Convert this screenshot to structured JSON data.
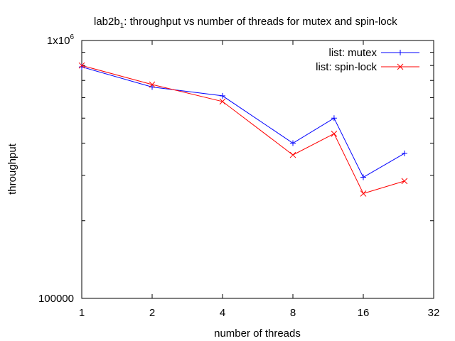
{
  "chart_data": {
    "type": "line",
    "title_main": "lab2b",
    "title_sub": "1",
    "title_rest": ": throughput vs number of threads for mutex and spin-lock",
    "xlabel": "number of threads",
    "ylabel": "throughput",
    "x_scale": "log2",
    "y_scale": "log10",
    "xlim": [
      1,
      32
    ],
    "ylim": [
      100000,
      1000000
    ],
    "x_ticks": [
      1,
      2,
      4,
      8,
      16,
      32
    ],
    "x_tick_labels": [
      "1",
      "2",
      "4",
      "8",
      "16",
      "32"
    ],
    "y_ticks": [
      100000,
      1000000
    ],
    "y_tick_labels": {
      "low": "100000",
      "high_base": "1x10",
      "high_exp": "6"
    },
    "legend_position": "top-right",
    "grid": false,
    "series": [
      {
        "name": "list: mutex",
        "color": "#0000ff",
        "marker": "plus",
        "x": [
          1,
          2,
          4,
          8,
          12,
          16,
          24
        ],
        "y": [
          790000,
          660000,
          610000,
          400000,
          500000,
          295000,
          365000
        ]
      },
      {
        "name": "list: spin-lock",
        "color": "#ff0000",
        "marker": "cross",
        "x": [
          1,
          2,
          4,
          8,
          12,
          16,
          24
        ],
        "y": [
          800000,
          675000,
          580000,
          360000,
          435000,
          255000,
          285000
        ]
      }
    ]
  }
}
